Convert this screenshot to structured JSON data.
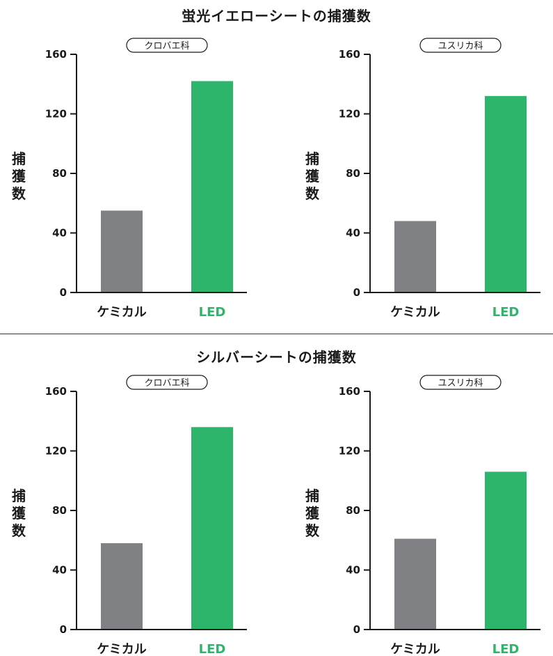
{
  "colors": {
    "chemical": "#808184",
    "led": "#2cb56b",
    "axis": "#1a1a1a",
    "led_label": "#2cb56b"
  },
  "sections": [
    {
      "title": "蛍光イエローシートの捕獲数"
    },
    {
      "title": "シルバーシートの捕獲数"
    }
  ],
  "chart_data": [
    {
      "type": "bar",
      "section": 0,
      "badge": "クロバエ科",
      "ylabel": "捕獲数",
      "categories": [
        "ケミカル",
        "LED"
      ],
      "values": [
        55,
        142
      ],
      "ylim": [
        0,
        160
      ],
      "yticks": [
        0,
        40,
        80,
        120,
        160
      ]
    },
    {
      "type": "bar",
      "section": 0,
      "badge": "ユスリカ科",
      "ylabel": "捕獲数",
      "categories": [
        "ケミカル",
        "LED"
      ],
      "values": [
        48,
        132
      ],
      "ylim": [
        0,
        160
      ],
      "yticks": [
        0,
        40,
        80,
        120,
        160
      ]
    },
    {
      "type": "bar",
      "section": 1,
      "badge": "クロバエ科",
      "ylabel": "捕獲数",
      "categories": [
        "ケミカル",
        "LED"
      ],
      "values": [
        58,
        136
      ],
      "ylim": [
        0,
        160
      ],
      "yticks": [
        0,
        40,
        80,
        120,
        160
      ]
    },
    {
      "type": "bar",
      "section": 1,
      "badge": "ユスリカ科",
      "ylabel": "捕獲数",
      "categories": [
        "ケミカル",
        "LED"
      ],
      "values": [
        61,
        106
      ],
      "ylim": [
        0,
        160
      ],
      "yticks": [
        0,
        40,
        80,
        120,
        160
      ]
    }
  ]
}
